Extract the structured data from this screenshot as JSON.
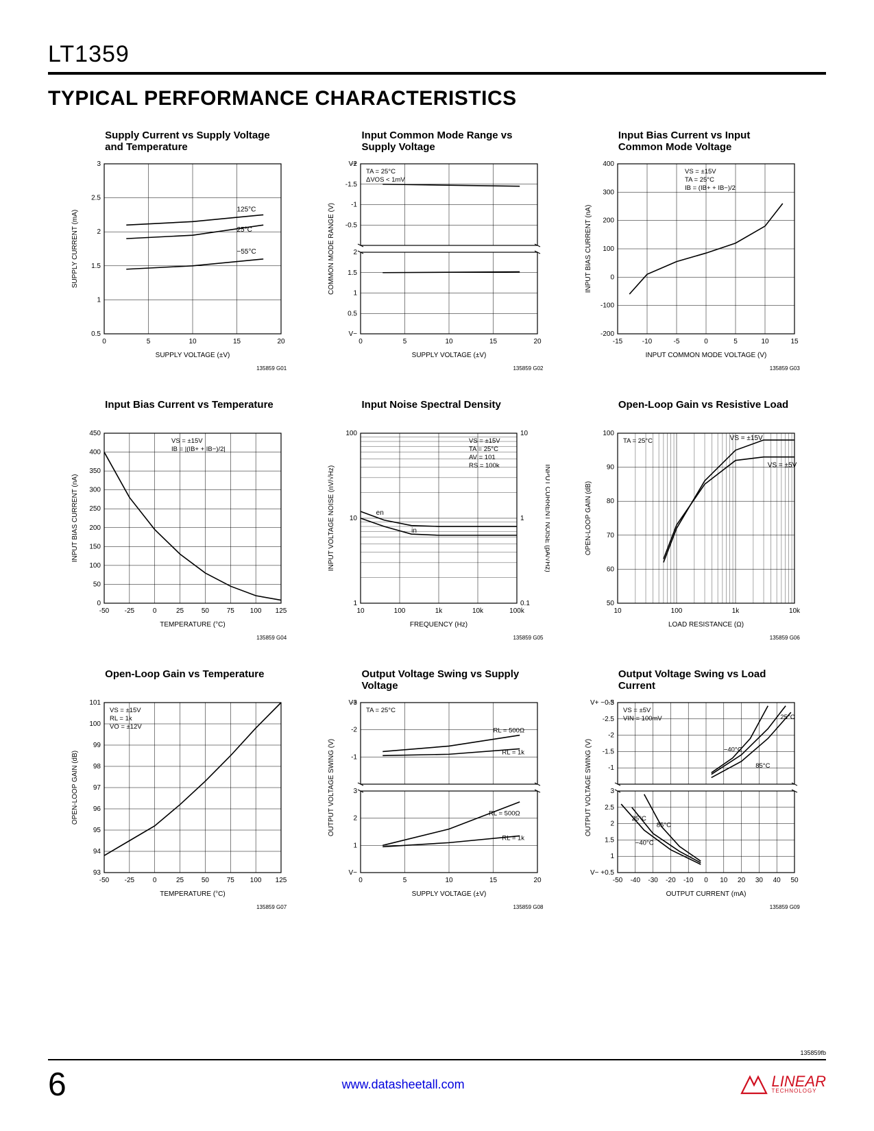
{
  "page": {
    "part_number": "LT1359",
    "section_title": "TYPICAL PERFORMANCE CHARACTERISTICS",
    "page_number": "6",
    "footer_link": "www.datasheetall.com",
    "doc_rev": "135859fb",
    "logo_text": "LINEAR",
    "logo_sub": "TECHNOLOGY"
  },
  "charts": [
    {
      "type": "line",
      "title": "Supply Current vs Supply Voltage and Temperature",
      "xlabel": "SUPPLY VOLTAGE (±V)",
      "ylabel": "SUPPLY CURRENT (mA)",
      "xlim": [
        0,
        20
      ],
      "xtick_step": 5,
      "ylim": [
        0.5,
        3.0
      ],
      "ytick_step": 0.5,
      "series": [
        {
          "label": "125°C",
          "points": [
            [
              2.5,
              2.1
            ],
            [
              10,
              2.15
            ],
            [
              18,
              2.25
            ]
          ]
        },
        {
          "label": "25°C",
          "points": [
            [
              2.5,
              1.9
            ],
            [
              10,
              1.95
            ],
            [
              18,
              2.1
            ]
          ]
        },
        {
          "label": "−55°C",
          "points": [
            [
              2.5,
              1.45
            ],
            [
              10,
              1.5
            ],
            [
              18,
              1.6
            ]
          ]
        }
      ],
      "line_labels": [
        {
          "text": "125°C",
          "x": 15,
          "y": 2.3
        },
        {
          "text": "25°C",
          "x": 15,
          "y": 2.0
        },
        {
          "text": "−55°C",
          "x": 15,
          "y": 1.68
        }
      ],
      "fig_id": "135859 G01",
      "colors": {
        "line": "#000000",
        "grid": "#000000",
        "bg": "#ffffff"
      }
    },
    {
      "type": "split",
      "title": "Input Common Mode Range vs Supply Voltage",
      "xlabel": "SUPPLY VOLTAGE (±V)",
      "ylabel": "COMMON MODE RANGE (V)",
      "xlim": [
        0,
        20
      ],
      "xtick_step": 5,
      "top": {
        "ylim": [
          -2.0,
          0
        ],
        "yticks": [
          -0.5,
          -1.0,
          -1.5,
          -2.0
        ],
        "ref": "V+",
        "series": [
          {
            "points": [
              [
                2.5,
                -1.5
              ],
              [
                18,
                -1.45
              ]
            ]
          }
        ]
      },
      "bot": {
        "ylim": [
          0,
          2.0
        ],
        "yticks": [
          0.5,
          1.0,
          1.5,
          2.0
        ],
        "ref": "V−",
        "series": [
          {
            "points": [
              [
                2.5,
                1.5
              ],
              [
                18,
                1.52
              ]
            ]
          }
        ]
      },
      "annotations": [
        "TA = 25°C",
        "ΔVOS < 1mV"
      ],
      "fig_id": "135859 G02",
      "colors": {
        "line": "#000000",
        "grid": "#000000",
        "bg": "#ffffff"
      }
    },
    {
      "type": "line",
      "title": "Input Bias Current vs Input Common Mode Voltage",
      "xlabel": "INPUT COMMON MODE VOLTAGE (V)",
      "ylabel": "INPUT BIAS CURRENT (nA)",
      "xlim": [
        -15,
        15
      ],
      "xtick_step": 5,
      "ylim": [
        -200,
        400
      ],
      "ytick_step": 100,
      "series": [
        {
          "points": [
            [
              -13,
              -60
            ],
            [
              -10,
              10
            ],
            [
              -5,
              55
            ],
            [
              0,
              85
            ],
            [
              5,
              120
            ],
            [
              10,
              180
            ],
            [
              13,
              260
            ]
          ]
        }
      ],
      "annotations": [
        "VS = ±15V",
        "TA = 25°C",
        "IB = (IB+ + IB−)/2"
      ],
      "fig_id": "135859 G03",
      "colors": {
        "line": "#000000",
        "grid": "#000000",
        "bg": "#ffffff"
      }
    },
    {
      "type": "line",
      "title": "Input Bias Current vs Temperature",
      "xlabel": "TEMPERATURE (°C)",
      "ylabel": "INPUT BIAS CURRENT (nA)",
      "xlim": [
        -50,
        125
      ],
      "xtick_step": 25,
      "ylim": [
        0,
        450
      ],
      "ytick_step": 50,
      "series": [
        {
          "points": [
            [
              -50,
              400
            ],
            [
              -25,
              280
            ],
            [
              0,
              195
            ],
            [
              25,
              130
            ],
            [
              50,
              80
            ],
            [
              75,
              45
            ],
            [
              100,
              20
            ],
            [
              125,
              8
            ]
          ]
        }
      ],
      "annotations": [
        "VS = ±15V",
        "IB = |(IB+ + IB−)/2|"
      ],
      "fig_id": "135859 G04",
      "colors": {
        "line": "#000000",
        "grid": "#000000",
        "bg": "#ffffff"
      }
    },
    {
      "type": "loglog",
      "title": "Input Noise Spectral Density",
      "xlabel": "FREQUENCY (Hz)",
      "ylabel": "INPUT VOLTAGE NOISE (nV/√Hz)",
      "ylabel2": "INPUT CURRENT NOISE (pA/√Hz)",
      "xlim": [
        10,
        100000
      ],
      "xticks": [
        10,
        100,
        1000,
        10000,
        100000
      ],
      "xtick_labels": [
        "10",
        "100",
        "1k",
        "10k",
        "100k"
      ],
      "ylim": [
        1,
        100
      ],
      "yticks": [
        1,
        10,
        100
      ],
      "ylim2": [
        0.1,
        10
      ],
      "yticks2": [
        0.1,
        1,
        10
      ],
      "series": [
        {
          "label": "en",
          "points": [
            [
              10,
              12
            ],
            [
              40,
              9.5
            ],
            [
              200,
              8.2
            ],
            [
              1000,
              8
            ],
            [
              100000,
              8
            ]
          ]
        },
        {
          "label": "in",
          "points": [
            [
              10,
              10
            ],
            [
              40,
              8
            ],
            [
              200,
              6.5
            ],
            [
              1000,
              6.3
            ],
            [
              100000,
              6.3
            ]
          ]
        }
      ],
      "line_labels": [
        {
          "text": "en",
          "x": 25,
          "y": 11
        },
        {
          "text": "in",
          "x": 200,
          "y": 6.8
        }
      ],
      "annotations": [
        "VS = ±15V",
        "TA = 25°C",
        "AV = 101",
        "RS = 100k"
      ],
      "fig_id": "135859 G05",
      "colors": {
        "line": "#000000",
        "grid": "#000000",
        "bg": "#ffffff"
      }
    },
    {
      "type": "semilogx",
      "title": "Open-Loop Gain vs Resistive Load",
      "xlabel": "LOAD RESISTANCE (Ω)",
      "ylabel": "OPEN-LOOP GAIN (dB)",
      "xlim": [
        10,
        10000
      ],
      "xticks": [
        10,
        100,
        1000,
        10000
      ],
      "xtick_labels": [
        "10",
        "100",
        "1k",
        "10k"
      ],
      "ylim": [
        50,
        100
      ],
      "ytick_step": 10,
      "series": [
        {
          "label": "VS = ±15V",
          "points": [
            [
              60,
              62
            ],
            [
              100,
              72
            ],
            [
              300,
              86
            ],
            [
              1000,
              95
            ],
            [
              3000,
              98
            ],
            [
              10000,
              98
            ]
          ]
        },
        {
          "label": "VS = ±5V",
          "points": [
            [
              60,
              63
            ],
            [
              100,
              73
            ],
            [
              300,
              85
            ],
            [
              1000,
              92
            ],
            [
              3000,
              93
            ],
            [
              10000,
              93
            ]
          ]
        }
      ],
      "line_labels": [
        {
          "text": "VS = ±15V",
          "x": 800,
          "y": 98
        },
        {
          "text": "VS = ±5V",
          "x": 3500,
          "y": 90
        }
      ],
      "annotations": [
        "TA = 25°C"
      ],
      "fig_id": "135859 G06",
      "colors": {
        "line": "#000000",
        "grid": "#000000",
        "bg": "#ffffff"
      }
    },
    {
      "type": "line",
      "title": "Open-Loop Gain vs Temperature",
      "xlabel": "TEMPERATURE (°C)",
      "ylabel": "OPEN-LOOP GAIN (dB)",
      "xlim": [
        -50,
        125
      ],
      "xtick_step": 25,
      "ylim": [
        93,
        101
      ],
      "ytick_step": 1,
      "series": [
        {
          "points": [
            [
              -50,
              93.8
            ],
            [
              -25,
              94.5
            ],
            [
              0,
              95.2
            ],
            [
              25,
              96.2
            ],
            [
              50,
              97.3
            ],
            [
              75,
              98.5
            ],
            [
              100,
              99.8
            ],
            [
              125,
              101
            ]
          ]
        }
      ],
      "annotations": [
        "VS = ±15V",
        "RL = 1k",
        "VO = ±12V"
      ],
      "fig_id": "135859 G07",
      "colors": {
        "line": "#000000",
        "grid": "#000000",
        "bg": "#ffffff"
      }
    },
    {
      "type": "split",
      "title": "Output Voltage Swing vs Supply Voltage",
      "xlabel": "SUPPLY VOLTAGE (±V)",
      "ylabel": "OUTPUT VOLTAGE SWING (V)",
      "xlim": [
        0,
        20
      ],
      "xtick_step": 5,
      "top": {
        "ylim": [
          -3,
          0
        ],
        "yticks": [
          -1,
          -2,
          -3
        ],
        "ref": "V+",
        "series": [
          {
            "label": "RL = 1k",
            "points": [
              [
                2.5,
                -1.05
              ],
              [
                10,
                -1.1
              ],
              [
                18,
                -1.3
              ]
            ]
          },
          {
            "label": "RL = 500Ω",
            "points": [
              [
                2.5,
                -1.2
              ],
              [
                10,
                -1.4
              ],
              [
                18,
                -1.8
              ]
            ]
          }
        ],
        "line_labels": [
          {
            "text": "RL = 1k",
            "x": 16,
            "y": -1.1
          },
          {
            "text": "RL = 500Ω",
            "x": 15,
            "y": -1.9
          }
        ]
      },
      "bot": {
        "ylim": [
          0,
          3
        ],
        "yticks": [
          1,
          2,
          3
        ],
        "ref": "V−",
        "series": [
          {
            "label": "RL = 500Ω",
            "points": [
              [
                2.5,
                1.0
              ],
              [
                10,
                1.6
              ],
              [
                18,
                2.6
              ]
            ]
          },
          {
            "label": "RL = 1k",
            "points": [
              [
                2.5,
                0.95
              ],
              [
                10,
                1.1
              ],
              [
                18,
                1.35
              ]
            ]
          }
        ],
        "line_labels": [
          {
            "text": "RL = 500Ω",
            "x": 14.5,
            "y": 2.1
          },
          {
            "text": "RL = 1k",
            "x": 16,
            "y": 1.2
          }
        ]
      },
      "annotations": [
        "TA = 25°C"
      ],
      "fig_id": "135859 G08",
      "colors": {
        "line": "#000000",
        "grid": "#000000",
        "bg": "#ffffff"
      }
    },
    {
      "type": "split",
      "title": "Output Voltage Swing vs Load Current",
      "xlabel": "OUTPUT CURRENT (mA)",
      "ylabel": "OUTPUT VOLTAGE SWING (V)",
      "xlim": [
        -50,
        50
      ],
      "xtick_step": 10,
      "top": {
        "ylim": [
          -3,
          -0.5
        ],
        "yticks": [
          -1.0,
          -1.5,
          -2.0,
          -2.5,
          -3.0
        ],
        "ref": "V+ −0.5",
        "series": [
          {
            "label": "85°C",
            "points": [
              [
                3,
                -0.7
              ],
              [
                20,
                -1.2
              ],
              [
                35,
                -1.9
              ],
              [
                48,
                -2.7
              ]
            ]
          },
          {
            "label": "25°C",
            "points": [
              [
                3,
                -0.8
              ],
              [
                20,
                -1.4
              ],
              [
                35,
                -2.2
              ],
              [
                45,
                -2.9
              ]
            ]
          },
          {
            "label": "−40°C",
            "points": [
              [
                3,
                -0.85
              ],
              [
                15,
                -1.3
              ],
              [
                25,
                -1.9
              ],
              [
                35,
                -2.9
              ]
            ]
          }
        ],
        "line_labels": [
          {
            "text": "85°C",
            "x": 28,
            "y": -1.0
          },
          {
            "text": "−40°C",
            "x": 10,
            "y": -1.5
          },
          {
            "text": "25°C",
            "x": 42,
            "y": -2.5
          }
        ]
      },
      "bot": {
        "ylim": [
          0.5,
          3
        ],
        "yticks": [
          1.0,
          1.5,
          2.0,
          2.5,
          3.0
        ],
        "ref": "V− +0.5",
        "series": [
          {
            "label": "25°C",
            "points": [
              [
                -48,
                2.6
              ],
              [
                -35,
                1.8
              ],
              [
                -20,
                1.2
              ],
              [
                -3,
                0.75
              ]
            ]
          },
          {
            "label": "85°C",
            "points": [
              [
                -42,
                2.5
              ],
              [
                -30,
                1.7
              ],
              [
                -15,
                1.15
              ],
              [
                -3,
                0.8
              ]
            ]
          },
          {
            "label": "−40°C",
            "points": [
              [
                -35,
                2.9
              ],
              [
                -25,
                1.9
              ],
              [
                -15,
                1.3
              ],
              [
                -3,
                0.85
              ]
            ]
          }
        ],
        "line_labels": [
          {
            "text": "25°C",
            "x": -42,
            "y": 2.1
          },
          {
            "text": "85°C",
            "x": -28,
            "y": 1.9
          },
          {
            "text": "−40°C",
            "x": -40,
            "y": 1.35
          }
        ]
      },
      "annotations": [
        "VS = ±5V",
        "VIN = 100mV"
      ],
      "fig_id": "135859 G09",
      "colors": {
        "line": "#000000",
        "grid": "#000000",
        "bg": "#ffffff"
      }
    }
  ]
}
